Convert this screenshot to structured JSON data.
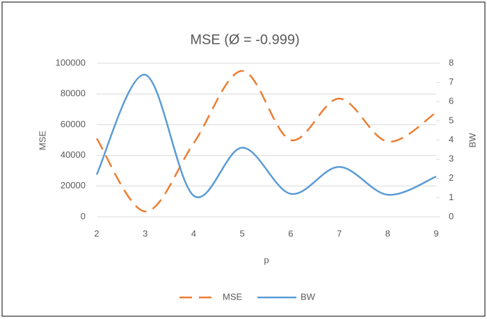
{
  "chart_data": {
    "type": "line",
    "title": "MSE (Ø = -0.999)",
    "x_label": "p",
    "y_label": "MSE",
    "y2_label": "BW",
    "x": [
      2,
      3,
      4,
      5,
      6,
      7,
      8,
      9
    ],
    "xlim": [
      2,
      9
    ],
    "xticks": [
      2,
      3,
      4,
      5,
      6,
      7,
      8,
      9
    ],
    "ylim": [
      0,
      100000
    ],
    "yticks": [
      0,
      20000,
      40000,
      60000,
      80000,
      100000
    ],
    "y2lim": [
      0,
      8
    ],
    "y2ticks": [
      0,
      1,
      2,
      3,
      4,
      5,
      6,
      7,
      8
    ],
    "grid": true,
    "legend": "bottom",
    "series": [
      {
        "name": "MSE",
        "color": "#ed7d31",
        "dash": true,
        "values": [
          51000,
          3500,
          48000,
          95000,
          50000,
          77000,
          49000,
          68000
        ]
      },
      {
        "name": "BW",
        "color": "#5b9bd5",
        "dash": false,
        "axis": "y2",
        "values": [
          2.2,
          7.4,
          1.1,
          3.6,
          1.2,
          2.6,
          1.15,
          2.1
        ]
      }
    ]
  }
}
